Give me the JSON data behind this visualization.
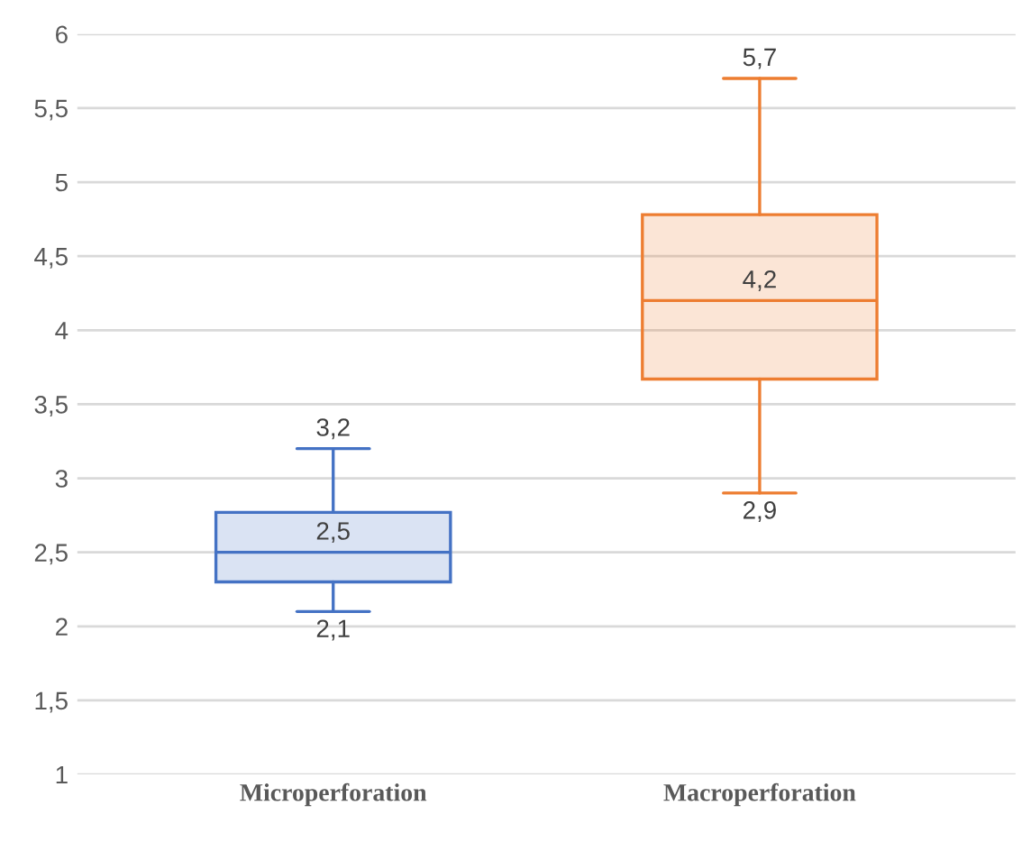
{
  "chart_data": {
    "type": "box",
    "categories": [
      "Microperforation",
      "Macroperforation"
    ],
    "boxes": [
      {
        "low": 2.1,
        "q1": 2.3,
        "median": 2.5,
        "q3": 2.77,
        "high": 3.2
      },
      {
        "low": 2.9,
        "q1": 3.67,
        "median": 4.2,
        "q3": 4.78,
        "high": 5.7
      }
    ],
    "colors": [
      "#4472c4",
      "#ed7d31"
    ],
    "ylim": [
      1,
      6
    ],
    "yticks": [
      1,
      {
        "value": 1.5,
        "label": "1,5"
      },
      2,
      {
        "value": 2.5,
        "label": "2,5"
      },
      3,
      {
        "value": 3.5,
        "label": "3,5"
      },
      4,
      {
        "value": 4.5,
        "label": "4,5"
      },
      5,
      {
        "value": 5.5,
        "label": "5,5"
      },
      6
    ],
    "grid": "y",
    "annotations": [
      {
        "text": "3,2",
        "x": "Microperforation",
        "y": 3.2
      },
      {
        "text": "2,5",
        "x": "Microperforation",
        "y": 2.5
      },
      {
        "text": "2,1",
        "x": "Microperforation",
        "y": 2.1
      },
      {
        "text": "5,7",
        "x": "Macroperforation",
        "y": 5.7
      },
      {
        "text": "4,2",
        "x": "Macroperforation",
        "y": 4.2
      },
      {
        "text": "2,9",
        "x": "Macroperforation",
        "y": 2.9
      }
    ]
  }
}
